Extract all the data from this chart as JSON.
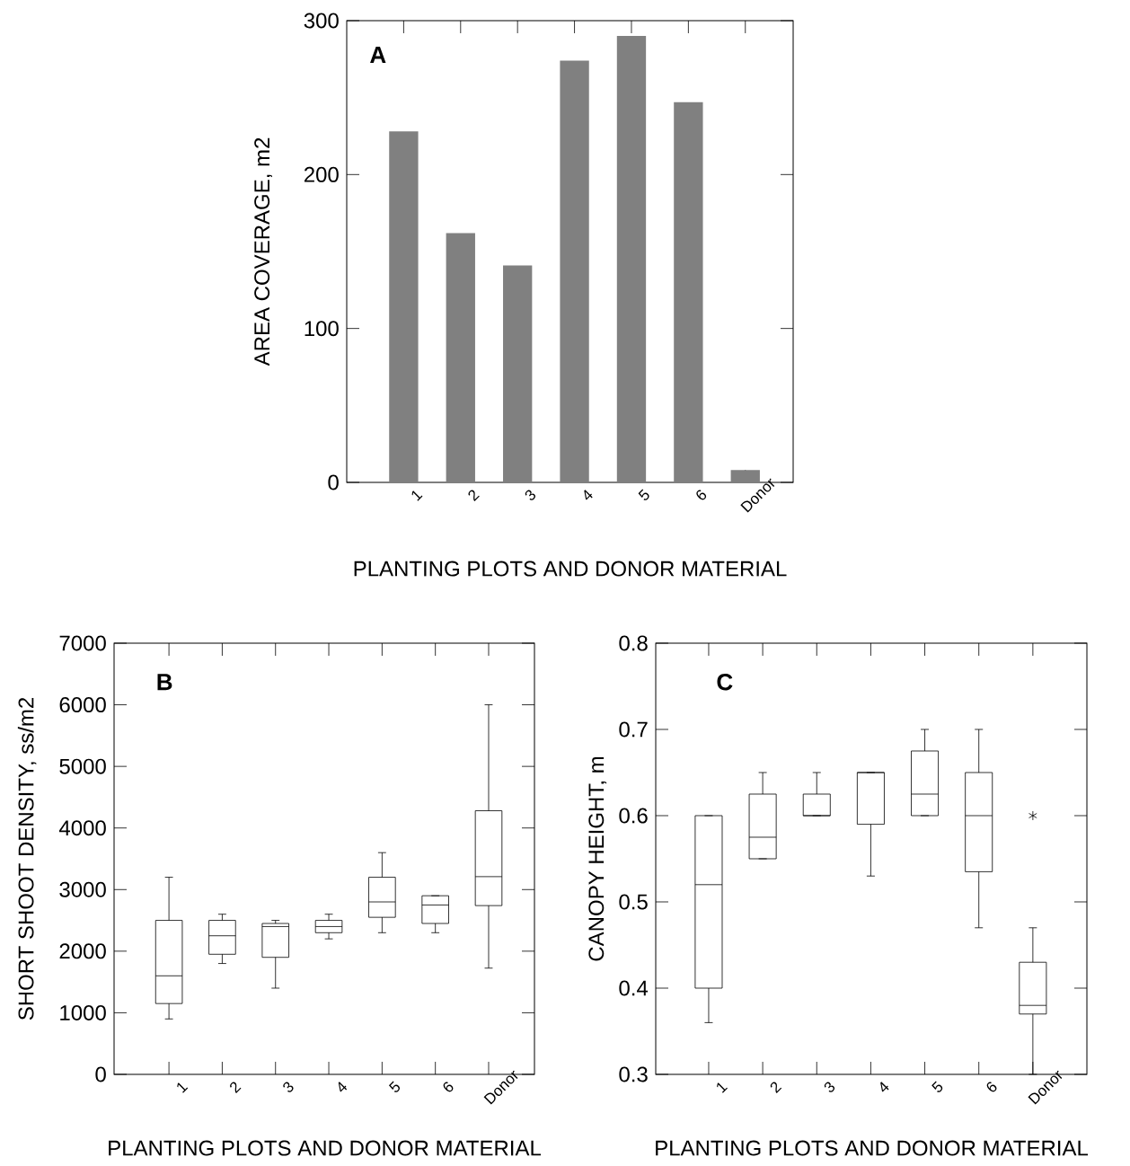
{
  "chart_data": [
    {
      "type": "bar",
      "categories": [
        "1",
        "2",
        "3",
        "4",
        "5",
        "6",
        "Donor"
      ],
      "values": [
        228,
        162,
        141,
        274,
        290,
        247,
        8
      ],
      "color": "#808080",
      "ylim": [
        0,
        300
      ],
      "yticks": [
        0,
        100,
        200,
        300
      ],
      "xlabel": "PLANTING PLOTS AND DONOR MATERIAL",
      "ylabel": "AREA COVERAGE, m2",
      "annotations": [
        "A"
      ]
    },
    {
      "type": "box",
      "categories": [
        "1",
        "2",
        "3",
        "4",
        "5",
        "6",
        "Donor"
      ],
      "color": "#000000",
      "ylim": [
        0,
        7000
      ],
      "yticks": [
        0,
        1000,
        2000,
        3000,
        4000,
        5000,
        6000,
        7000
      ],
      "xlabel": "PLANTING PLOTS AND DONOR MATERIAL",
      "ylabel": "SHORT SHOOT DENSITY, ss/m2",
      "annotations": [
        "B"
      ],
      "boxes": [
        {
          "low": 900,
          "q1": 1150,
          "median": 1600,
          "q3": 2500,
          "high": 3200
        },
        {
          "low": 1800,
          "q1": 1950,
          "median": 2250,
          "q3": 2500,
          "high": 2600
        },
        {
          "low": 1400,
          "q1": 1900,
          "median": 2400,
          "q3": 2450,
          "high": 2500
        },
        {
          "low": 2200,
          "q1": 2300,
          "median": 2400,
          "q3": 2500,
          "high": 2600
        },
        {
          "low": 2300,
          "q1": 2550,
          "median": 2800,
          "q3": 3200,
          "high": 3600
        },
        {
          "low": 2300,
          "q1": 2450,
          "median": 2750,
          "q3": 2900,
          "high": 2900
        },
        {
          "low": 1725,
          "q1": 2740,
          "median": 3210,
          "q3": 4280,
          "high": 6000
        }
      ]
    },
    {
      "type": "box",
      "categories": [
        "1",
        "2",
        "3",
        "4",
        "5",
        "6",
        "Donor"
      ],
      "color": "#000000",
      "ylim": [
        0.3,
        0.8
      ],
      "yticks": [
        0.3,
        0.4,
        0.5,
        0.6,
        0.7,
        0.8
      ],
      "xlabel": "PLANTING PLOTS AND DONOR MATERIAL",
      "ylabel": "CANOPY HEIGHT, m",
      "annotations": [
        "C"
      ],
      "boxes": [
        {
          "low": 0.36,
          "q1": 0.4,
          "median": 0.52,
          "q3": 0.6,
          "high": 0.6
        },
        {
          "low": 0.55,
          "q1": 0.55,
          "median": 0.575,
          "q3": 0.625,
          "high": 0.65
        },
        {
          "low": 0.6,
          "q1": 0.6,
          "median": 0.6,
          "q3": 0.625,
          "high": 0.65
        },
        {
          "low": 0.53,
          "q1": 0.59,
          "median": 0.65,
          "q3": 0.65,
          "high": 0.65
        },
        {
          "low": 0.6,
          "q1": 0.6,
          "median": 0.625,
          "q3": 0.675,
          "high": 0.7
        },
        {
          "low": 0.47,
          "q1": 0.535,
          "median": 0.6,
          "q3": 0.65,
          "high": 0.7
        },
        {
          "low": 0.3,
          "q1": 0.37,
          "median": 0.38,
          "q3": 0.43,
          "high": 0.47,
          "outliers": [
            0.6
          ]
        }
      ]
    }
  ]
}
